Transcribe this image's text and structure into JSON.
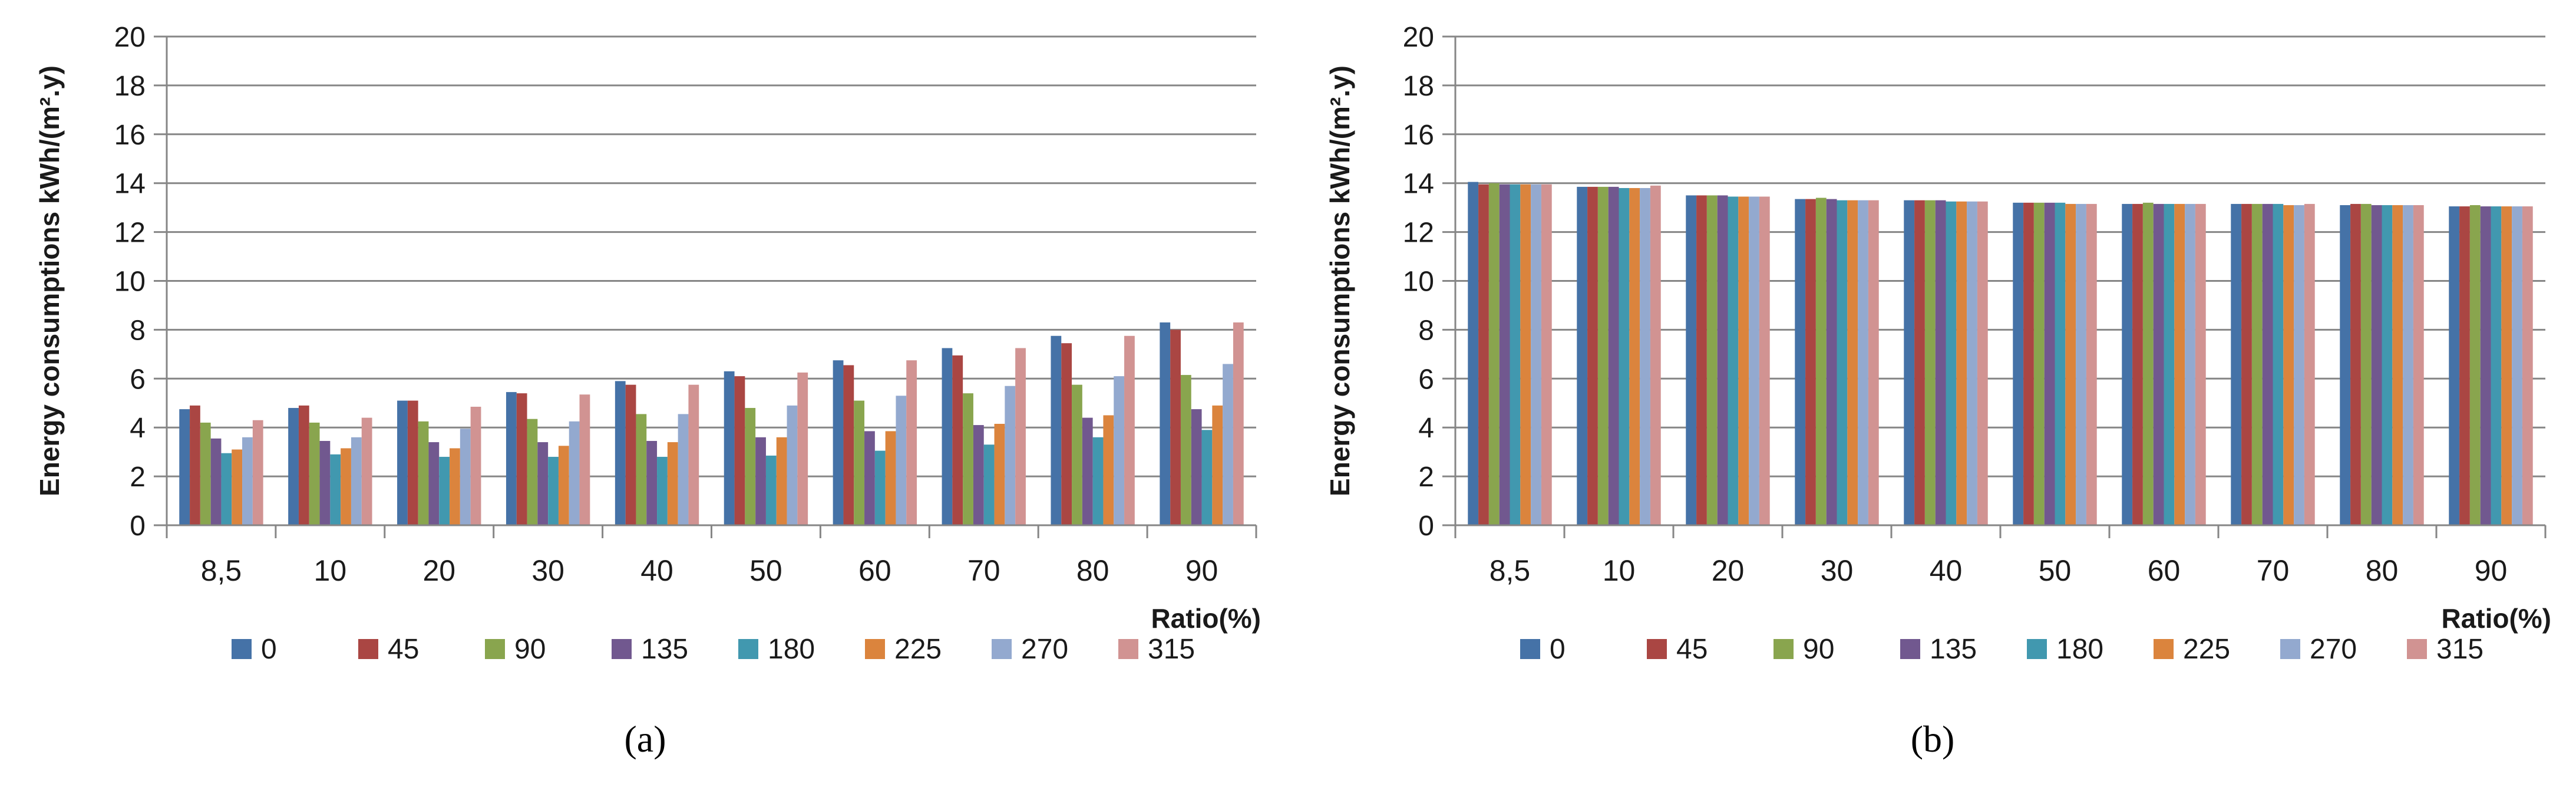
{
  "colors": [
    "#4572A7",
    "#AA4643",
    "#89A54E",
    "#71588F",
    "#4198AF",
    "#DB843D",
    "#93A9CF",
    "#D19392"
  ],
  "chart_data": [
    {
      "type": "bar",
      "panel": "a",
      "panel_label": "(a)",
      "ylabel": "Energy consumptions  kWh/(m².y)",
      "xlabel": "Ratio(%)",
      "ylim": [
        0,
        20
      ],
      "yticks": [
        "0",
        "2",
        "4",
        "6",
        "8",
        "10",
        "12",
        "14",
        "16",
        "18",
        "20"
      ],
      "categories": [
        "8,5",
        "10",
        "20",
        "30",
        "40",
        "50",
        "60",
        "70",
        "80",
        "90"
      ],
      "series": [
        {
          "name": "0",
          "values": [
            4.75,
            4.8,
            5.1,
            5.45,
            5.9,
            6.3,
            6.75,
            7.25,
            7.75,
            8.3
          ]
        },
        {
          "name": "45",
          "values": [
            4.9,
            4.9,
            5.1,
            5.4,
            5.75,
            6.1,
            6.55,
            6.95,
            7.45,
            8.0
          ]
        },
        {
          "name": "90",
          "values": [
            4.2,
            4.2,
            4.25,
            4.35,
            4.55,
            4.8,
            5.1,
            5.4,
            5.75,
            6.15
          ]
        },
        {
          "name": "135",
          "values": [
            3.55,
            3.45,
            3.4,
            3.4,
            3.45,
            3.6,
            3.85,
            4.1,
            4.4,
            4.75
          ]
        },
        {
          "name": "180",
          "values": [
            2.95,
            2.9,
            2.8,
            2.8,
            2.8,
            2.85,
            3.05,
            3.3,
            3.6,
            3.9
          ]
        },
        {
          "name": "225",
          "values": [
            3.1,
            3.15,
            3.15,
            3.25,
            3.4,
            3.6,
            3.85,
            4.15,
            4.5,
            4.9
          ]
        },
        {
          "name": "270",
          "values": [
            3.6,
            3.6,
            3.95,
            4.25,
            4.55,
            4.9,
            5.3,
            5.7,
            6.1,
            6.6
          ]
        },
        {
          "name": "315",
          "values": [
            4.3,
            4.4,
            4.85,
            5.35,
            5.75,
            6.25,
            6.75,
            7.25,
            7.75,
            8.3
          ]
        }
      ],
      "legend": "bottom"
    },
    {
      "type": "bar",
      "panel": "b",
      "panel_label": "(b)",
      "ylabel": "Energy consumptions  kWh/(m².y)",
      "xlabel": "Ratio(%)",
      "ylim": [
        0,
        20
      ],
      "yticks": [
        "0",
        "2",
        "4",
        "6",
        "8",
        "10",
        "12",
        "14",
        "16",
        "18",
        "20"
      ],
      "categories": [
        "8,5",
        "10",
        "20",
        "30",
        "40",
        "50",
        "60",
        "70",
        "80",
        "90"
      ],
      "series": [
        {
          "name": "0",
          "values": [
            14.05,
            13.85,
            13.5,
            13.35,
            13.3,
            13.2,
            13.15,
            13.15,
            13.1,
            13.05
          ]
        },
        {
          "name": "45",
          "values": [
            13.95,
            13.85,
            13.5,
            13.35,
            13.3,
            13.2,
            13.15,
            13.15,
            13.15,
            13.05
          ]
        },
        {
          "name": "90",
          "values": [
            14.0,
            13.85,
            13.5,
            13.4,
            13.3,
            13.2,
            13.2,
            13.15,
            13.15,
            13.1
          ]
        },
        {
          "name": "135",
          "values": [
            13.95,
            13.85,
            13.5,
            13.35,
            13.3,
            13.2,
            13.15,
            13.15,
            13.1,
            13.05
          ]
        },
        {
          "name": "180",
          "values": [
            13.95,
            13.8,
            13.45,
            13.3,
            13.25,
            13.2,
            13.15,
            13.15,
            13.1,
            13.05
          ]
        },
        {
          "name": "225",
          "values": [
            13.95,
            13.8,
            13.45,
            13.3,
            13.25,
            13.15,
            13.15,
            13.1,
            13.1,
            13.05
          ]
        },
        {
          "name": "270",
          "values": [
            13.95,
            13.8,
            13.45,
            13.3,
            13.25,
            13.15,
            13.15,
            13.1,
            13.1,
            13.05
          ]
        },
        {
          "name": "315",
          "values": [
            13.95,
            13.9,
            13.45,
            13.3,
            13.25,
            13.15,
            13.15,
            13.15,
            13.1,
            13.05
          ]
        }
      ],
      "legend": "bottom"
    }
  ]
}
